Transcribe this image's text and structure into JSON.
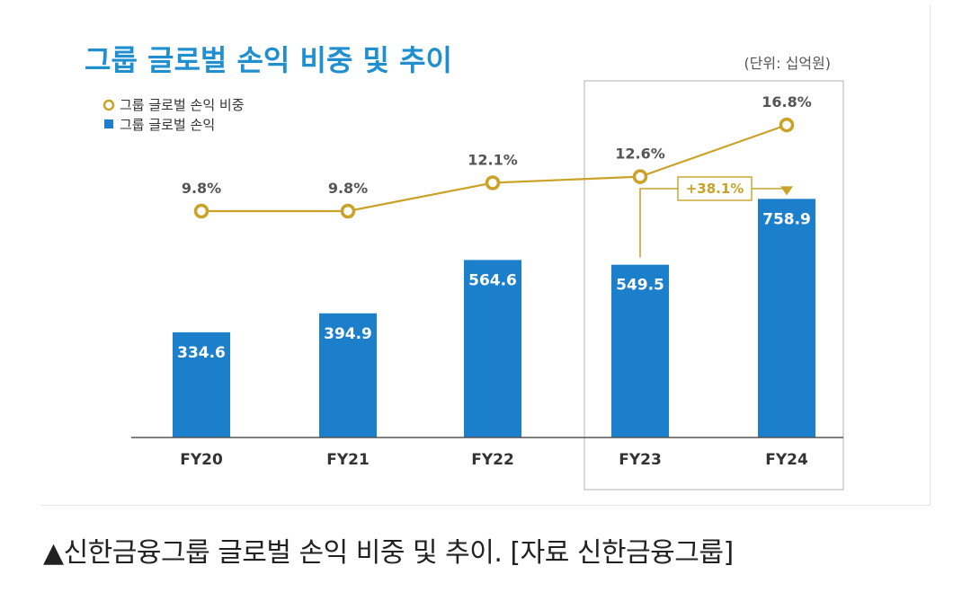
{
  "chart_data": {
    "type": "bar",
    "title": "그룹 글로벌 손익 비중 및 추이",
    "unit": "(단위: 십억원)",
    "categories": [
      "FY20",
      "FY21",
      "FY22",
      "FY23",
      "FY24"
    ],
    "series": [
      {
        "name": "그룹 글로벌 손익",
        "kind": "bar",
        "values": [
          334.6,
          394.9,
          564.6,
          549.5,
          758.9
        ],
        "labels": [
          "334.6",
          "394.9",
          "564.6",
          "549.5",
          "758.9"
        ]
      },
      {
        "name": "그룹 글로벌 손익 비중",
        "kind": "line",
        "values": [
          9.8,
          9.8,
          12.1,
          12.6,
          16.8
        ],
        "labels": [
          "9.8%",
          "9.8%",
          "12.1%",
          "12.6%",
          "16.8%"
        ]
      }
    ],
    "annotation": {
      "text": "+38.1%",
      "from": "FY23",
      "to": "FY24"
    },
    "highlight_categories": [
      "FY23",
      "FY24"
    ],
    "colors": {
      "bar": "#1c7fcc",
      "line": "#c9a227",
      "title": "#1f8fd0"
    }
  },
  "caption": "▲신한금융그룹 글로벌 손익 비중 및 추이. [자료 신한금융그룹]"
}
